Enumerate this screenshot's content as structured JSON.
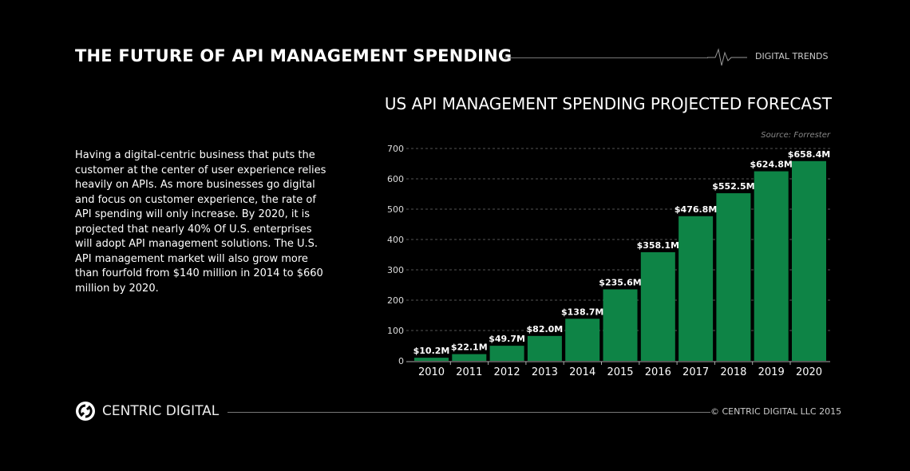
{
  "header": {
    "title": "THE FUTURE OF API MANAGEMENT SPENDING",
    "brand": "DIGITAL TRENDS"
  },
  "body_text": "Having a digital-centric business that puts the customer at the center of user experience relies heavily on APIs. As more businesses go digital and focus on customer experience, the rate of API spending will only increase. By 2020, it is projected that nearly 40% Of U.S. enterprises will adopt API management solutions. The U.S. API management market will also grow more than fourfold from $140 million in 2014 to $660 million by 2020.",
  "footer": {
    "logo_text": "CENTRIC DIGITAL",
    "copyright": "© CENTRIC DIGITAL LLC 2015"
  },
  "chart_data": {
    "type": "bar",
    "title": "US API MANAGEMENT SPENDING PROJECTED FORECAST",
    "source": "Source: Forrester",
    "categories": [
      "2010",
      "2011",
      "2012",
      "2013",
      "2014",
      "2015",
      "2016",
      "2017",
      "2018",
      "2019",
      "2020"
    ],
    "values": [
      10.2,
      22.1,
      49.7,
      82.0,
      138.7,
      235.6,
      358.1,
      476.8,
      552.5,
      624.8,
      658.4
    ],
    "data_labels": [
      "$10.2M",
      "$22.1M",
      "$49.7M",
      "$82.0M",
      "$138.7M",
      "$235.6M",
      "$358.1M",
      "$476.8M",
      "$552.5M",
      "$624.8M",
      "$658.4M"
    ],
    "yticks": [
      0,
      100,
      200,
      300,
      400,
      500,
      600,
      700
    ],
    "ylim": [
      0,
      700
    ],
    "grid": true,
    "bar_color": "#0e8446"
  }
}
